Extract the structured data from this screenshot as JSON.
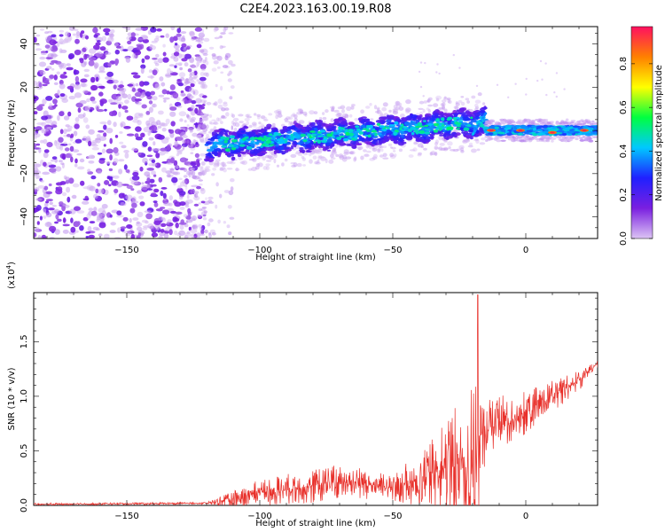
{
  "figure": {
    "title": "C2E4.2023.163.00.19.R08"
  },
  "chart_data": [
    {
      "type": "heatmap",
      "xlabel": "Height of straight line (km)",
      "ylabel": "Frequency (Hz)",
      "xlim": [
        -185,
        27
      ],
      "ylim": [
        -50,
        48
      ],
      "xticks": [
        -150,
        -100,
        -50,
        0
      ],
      "yticks": [
        -40,
        -20,
        0,
        20,
        40
      ],
      "colorbar": {
        "label": "Normalized spectral amplitude",
        "range": [
          0,
          0.97
        ],
        "ticks": [
          "0.0",
          "0.2",
          "0.4",
          "0.6",
          "0.8"
        ],
        "tick_values": [
          0.0,
          0.2,
          0.4,
          0.6,
          0.8
        ],
        "colormap": [
          "#dcc4f4",
          "#7a1fe0",
          "#2020ff",
          "#00c8ff",
          "#00ff40",
          "#ffff00",
          "#ff8000",
          "#ff1060"
        ]
      },
      "regions": [
        {
          "name": "noise",
          "x": [
            -185,
            -120
          ],
          "y": [
            -50,
            48
          ],
          "level": 0.15
        },
        {
          "name": "noise-fringe",
          "x": [
            -130,
            -110
          ],
          "y": [
            -50,
            48
          ],
          "level": 0.05
        },
        {
          "name": "signal-band",
          "x": [
            -120,
            -15
          ],
          "center_start": -7,
          "center_end": 4,
          "halfwidth": 6,
          "level": 0.35
        },
        {
          "name": "signal-band-end",
          "x": [
            -15,
            27
          ],
          "center": 0,
          "halfwidth": 2,
          "level": 0.45
        }
      ]
    },
    {
      "type": "line",
      "xlabel": "Height of straight line (km)",
      "ylabel": "SNR (10 * v/v)",
      "yscale_label": "(x10",
      "yscale_exp": "4",
      "yscale_close": ")",
      "xlim": [
        -185,
        27
      ],
      "ylim": [
        0,
        1.95
      ],
      "xticks": [
        -150,
        -100,
        -50,
        0
      ],
      "yticks": [
        0.0,
        0.5,
        1.0,
        1.5
      ],
      "ytick_labels": [
        "0.0",
        "0.5",
        "1.0",
        "1.5"
      ],
      "color": "#e8302a",
      "envelope": {
        "x": [
          -185,
          -120,
          -112,
          -100,
          -80,
          -70,
          -60,
          -50,
          -40,
          -30,
          -25,
          -20,
          -18,
          -15,
          -10,
          0,
          10,
          20,
          27
        ],
        "base": [
          0.01,
          0.02,
          0.05,
          0.12,
          0.18,
          0.22,
          0.2,
          0.15,
          0.25,
          0.35,
          0.35,
          0.35,
          0.45,
          0.7,
          0.75,
          0.85,
          1.0,
          1.15,
          1.3
        ],
        "spread": [
          0.01,
          0.01,
          0.06,
          0.12,
          0.16,
          0.16,
          0.15,
          0.12,
          0.25,
          0.45,
          0.6,
          0.8,
          0.6,
          0.3,
          0.25,
          0.2,
          0.15,
          0.1,
          0.04
        ]
      },
      "peak": {
        "x": -18,
        "y": 1.93
      }
    }
  ]
}
